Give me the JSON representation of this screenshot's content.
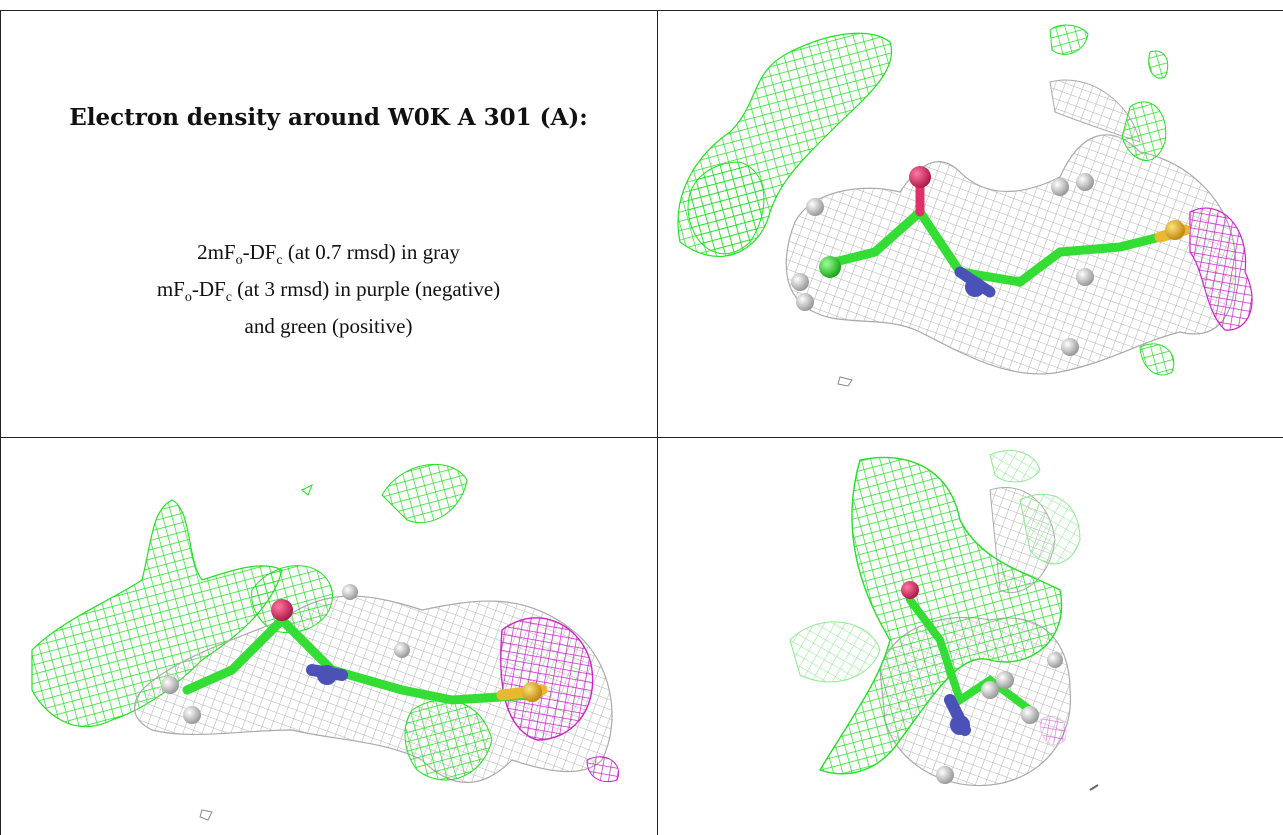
{
  "caption": {
    "title": "Electron density around W0K A 301 (A):",
    "line1": {
      "pre": "2mF",
      "sub1": "o",
      "mid": "-DF",
      "sub2": "c",
      "post": " (at 0.7 rmsd) in gray"
    },
    "line2": {
      "pre": "mF",
      "sub1": "o",
      "mid": "-DF",
      "sub2": "c",
      "post": " (at 3 rmsd) in purple (negative)"
    },
    "line3": "and green (positive)"
  },
  "colors": {
    "map_2fofc": "#b8b8b8",
    "map_positive": "#22e022",
    "map_negative": "#cc22cc",
    "atom_oxygen": "#e0306a",
    "atom_nitrogen": "#4a52b8",
    "atom_sulfur": "#e8b830",
    "atom_hydrogen": "#e6e6e6",
    "atom_carbon": "#33dd33"
  },
  "views": [
    "view-1",
    "view-2",
    "view-3"
  ]
}
